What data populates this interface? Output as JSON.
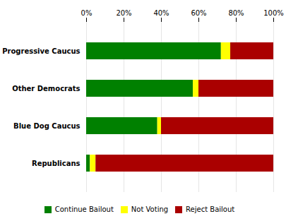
{
  "chart_data": {
    "type": "bar",
    "orientation": "horizontal",
    "stacked": true,
    "categories": [
      "Republicans",
      "Blue Dog Caucus",
      "Other Democrats",
      "Progressive Caucus"
    ],
    "series": [
      {
        "name": "Continue Bailout",
        "color": "#008000",
        "values": [
          2,
          38,
          57,
          72
        ]
      },
      {
        "name": "Not Voting",
        "color": "#FFFF00",
        "values": [
          3,
          2,
          3,
          5
        ]
      },
      {
        "name": "Reject Bailout",
        "color": "#AA0000",
        "values": [
          95,
          60,
          40,
          23
        ]
      }
    ],
    "xlim": [
      0,
      100
    ],
    "xticks": [
      {
        "value": 0,
        "label": "0%"
      },
      {
        "value": 20,
        "label": "20%"
      },
      {
        "value": 40,
        "label": "40%"
      },
      {
        "value": 60,
        "label": "60%"
      },
      {
        "value": 80,
        "label": "80%"
      },
      {
        "value": 100,
        "label": "100%"
      }
    ],
    "grid": true,
    "legend": "bottom"
  }
}
